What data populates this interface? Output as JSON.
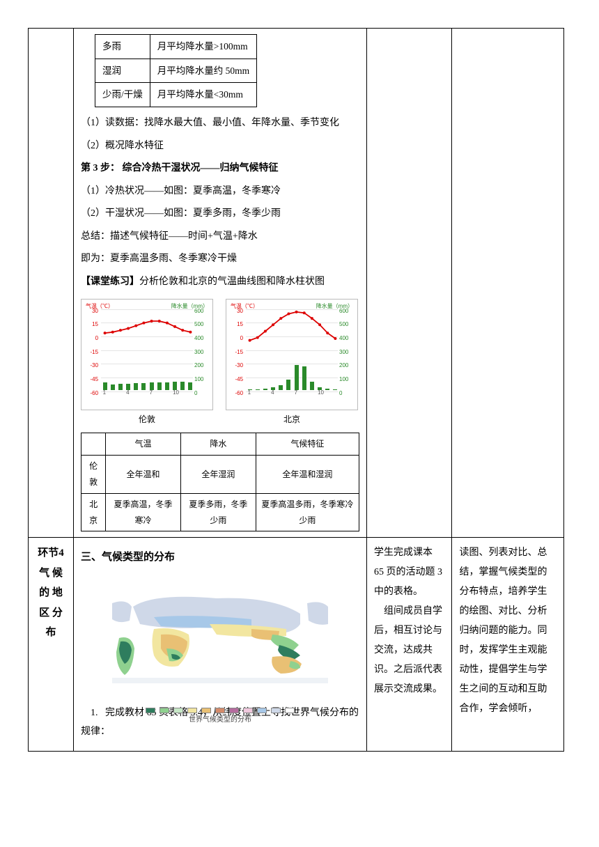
{
  "row1": {
    "innerTable": {
      "rows": [
        {
          "c1": "多雨",
          "c2": "月平均降水量>100mm"
        },
        {
          "c1": "湿润",
          "c2": "月平均降水量约 50mm"
        },
        {
          "c1": "少雨/干燥",
          "c2": "月平均降水量<30mm"
        }
      ]
    },
    "lines": [
      "（1）读数据：找降水最大值、最小值、年降水量、季节变化",
      "（2）概况降水特征"
    ],
    "step3_title": "第 3 步：  综合冷热干湿状况——归纳气候特征",
    "step3_lines": [
      "（1）冷热状况——如图：夏季高温，冬季寒冷",
      "（2）干湿状况——如图：夏季多雨，冬季少雨",
      "总结：描述气候特征——时间+气温+降水",
      "即为：夏季高温多雨、冬季寒冷干燥"
    ],
    "practice_title": "【课堂练习】",
    "practice_text": "分析伦敦和北京的气温曲线图和降水柱状图",
    "chart": {
      "temp_axis_title": "气温（℃）",
      "rain_axis_title": "降水量（mm）",
      "temp_ticks": [
        30,
        15,
        0,
        -15,
        -30,
        -45,
        -60
      ],
      "rain_ticks": [
        600,
        500,
        400,
        300,
        200,
        100,
        0
      ],
      "x_ticks": [
        "1",
        "4",
        "7",
        "10"
      ],
      "london": {
        "caption": "伦敦",
        "temps": [
          4,
          5,
          7,
          9,
          12,
          15,
          17,
          17,
          15,
          11,
          7,
          5
        ],
        "rains": [
          55,
          40,
          45,
          45,
          50,
          50,
          55,
          55,
          55,
          60,
          60,
          55
        ]
      },
      "beijing": {
        "caption": "北京",
        "temps": [
          -4,
          -1,
          6,
          13,
          20,
          25,
          27,
          26,
          20,
          13,
          4,
          -2
        ],
        "rains": [
          3,
          5,
          10,
          20,
          35,
          75,
          180,
          170,
          60,
          20,
          8,
          3
        ]
      },
      "temp_range": {
        "min": -60,
        "max": 30
      },
      "rain_max": 600
    },
    "cmp": {
      "headers": [
        "",
        "气温",
        "降水",
        "气候特征"
      ],
      "rows": [
        {
          "city": "伦敦",
          "t": "全年温和",
          "r": "全年湿润",
          "f": "全年温和湿润"
        },
        {
          "city": "北京",
          "t": "夏季高温，冬季寒冷",
          "r": "夏季多雨，冬季少雨",
          "f": "夏季高温多雨，冬季寒冷少雨"
        }
      ]
    }
  },
  "row2": {
    "vert": [
      "环节4",
      "气 候",
      "的 地",
      "区 分",
      "布"
    ],
    "section_title": "三、气候类型的分布",
    "map_caption": "世界气候类型的分布",
    "map_colors": [
      "#2e7d5e",
      "#8fd18f",
      "#c7e8c7",
      "#f2e6a0",
      "#e9c074",
      "#d48b6a",
      "#b56b9e",
      "#f0c8dd",
      "#a7c8e8",
      "#cfd8e8",
      "#ffffff"
    ],
    "task1": "    1.   完成教材 65 页表格 3.4，从纬度位置上寻找世界气候分布的规律：",
    "col3": "学生完成课本 65 页的活动题 3 中的表格。\n    组间成员自学后，相互讨论与交流，达成共识。之后派代表展示交流成果。",
    "col4": "读图、列表对比、总结，掌握气候类型的分布特点，培养学生的绘图、对比、分析归纳问题的能力。同时，发挥学生主观能动性，提倡学生与学生之间的互动和互助合作，学会倾听，"
  }
}
